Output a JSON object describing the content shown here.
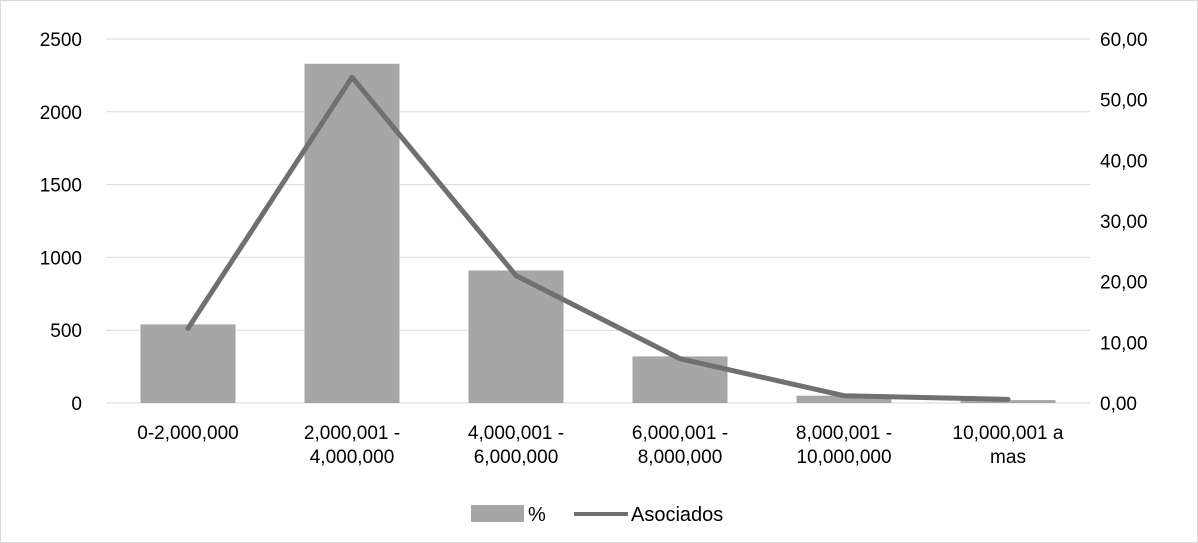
{
  "chart_data": {
    "type": "bar",
    "categories": [
      [
        "0-2,000,000"
      ],
      [
        "2,000,001 -",
        "4,000,000"
      ],
      [
        "4,000,001 -",
        "6,000,000"
      ],
      [
        "6,000,001 -",
        "8,000,000"
      ],
      [
        "8,000,001 -",
        "10,000,000"
      ],
      [
        "10,000,001 a",
        "mas"
      ]
    ],
    "series": [
      {
        "name": "%",
        "type": "bar",
        "axis": "left",
        "color": "#a6a6a6",
        "values": [
          540,
          2330,
          910,
          320,
          50,
          20
        ]
      },
      {
        "name": "Asociados",
        "type": "line",
        "axis": "right",
        "color": "#707070",
        "values": [
          12.3,
          53.7,
          21.0,
          7.3,
          1.2,
          0.6
        ]
      }
    ],
    "y_left": {
      "ticks": [
        "0",
        "500",
        "1000",
        "1500",
        "2000",
        "2500"
      ],
      "range": [
        0,
        2500
      ]
    },
    "y_right": {
      "ticks": [
        "0,00",
        "10,00",
        "20,00",
        "30,00",
        "40,00",
        "50,00",
        "60,00"
      ],
      "range": [
        0,
        60
      ]
    },
    "grid": true,
    "legend": "bottom"
  }
}
